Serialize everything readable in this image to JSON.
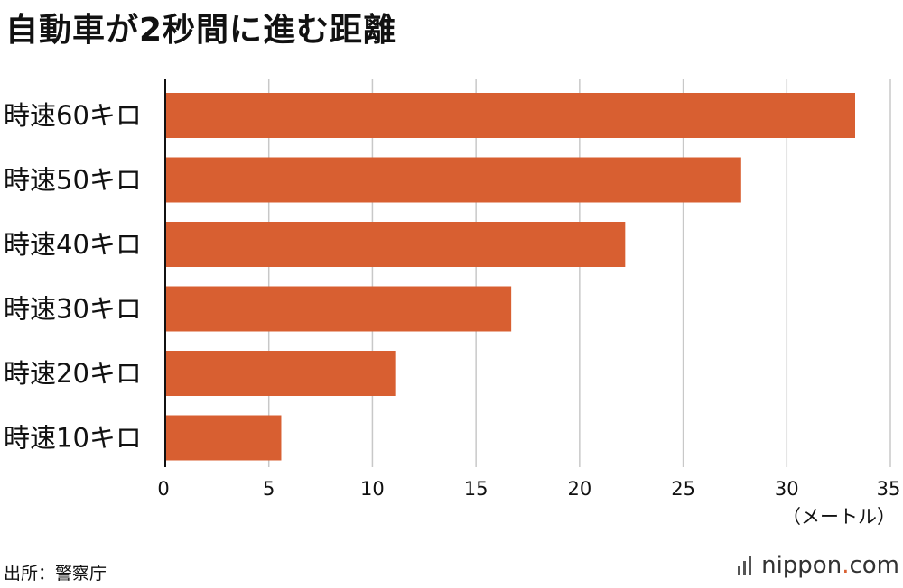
{
  "title": "自動車が2秒間に進む距離",
  "source": "出所：警察庁",
  "logo": {
    "name": "nippon",
    "dot": ".",
    "tld": "com"
  },
  "colors": {
    "bar": "#d85f31",
    "grid": "#c8c8c8",
    "axis": "#111111"
  },
  "chart_data": {
    "type": "bar",
    "orientation": "horizontal",
    "categories": [
      "時速60キロ",
      "時速50キロ",
      "時速40キロ",
      "時速30キロ",
      "時速20キロ",
      "時速10キロ"
    ],
    "values": [
      33.3,
      27.8,
      22.2,
      16.7,
      11.1,
      5.6
    ],
    "xlim": [
      0,
      35
    ],
    "xticks": [
      "0",
      "5",
      "10",
      "15",
      "20",
      "25",
      "30",
      "35"
    ],
    "xlabel": "（メートル）",
    "grid": true
  }
}
